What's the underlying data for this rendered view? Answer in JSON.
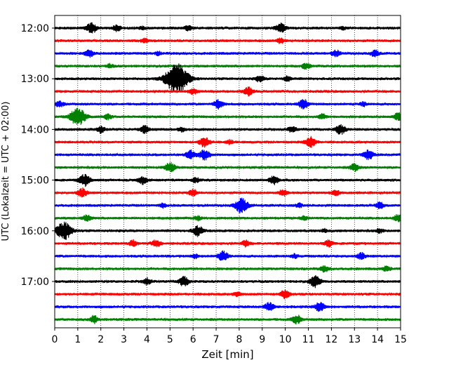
{
  "chart_data": {
    "type": "line",
    "title": "",
    "xlabel": "Zeit  [min]",
    "ylabel": "UTC (Lokalzeit = UTC + 02:00)",
    "xlim": [
      0,
      15
    ],
    "xticks": [
      0,
      1,
      2,
      3,
      4,
      5,
      6,
      7,
      8,
      9,
      10,
      11,
      12,
      13,
      14,
      15
    ],
    "xtick_labels": [
      "0",
      "1",
      "2",
      "3",
      "4",
      "5",
      "6",
      "7",
      "8",
      "9",
      "10",
      "11",
      "12",
      "13",
      "14",
      "15"
    ],
    "ytick_labels": [
      "12:00",
      "13:00",
      "14:00",
      "15:00",
      "16:00",
      "17:00"
    ],
    "row_interval_minutes": 15,
    "first_row": "12:00",
    "row_colors": [
      "#000000",
      "#ff0000",
      "#0000ff",
      "#008000"
    ],
    "grid": "vertical dotted lines at each minute",
    "series": [
      {
        "start": "12:00",
        "color": "#000000",
        "events": [
          [
            1.6,
            1.0
          ],
          [
            2.7,
            0.6
          ],
          [
            3.8,
            0.3
          ],
          [
            5.8,
            0.5
          ],
          [
            9.8,
            0.9
          ],
          [
            12.5,
            0.3
          ]
        ]
      },
      {
        "start": "12:15",
        "color": "#ff0000",
        "events": [
          [
            3.9,
            0.4
          ],
          [
            9.8,
            0.5
          ]
        ]
      },
      {
        "start": "12:30",
        "color": "#0000ff",
        "events": [
          [
            1.5,
            0.7
          ],
          [
            4.5,
            0.3
          ],
          [
            12.2,
            0.6
          ],
          [
            13.9,
            0.6
          ]
        ]
      },
      {
        "start": "12:45",
        "color": "#008000",
        "events": [
          [
            2.4,
            0.4
          ],
          [
            10.9,
            0.6
          ]
        ]
      },
      {
        "start": "13:00",
        "color": "#000000",
        "events": [
          [
            5.3,
            3.0
          ],
          [
            8.9,
            0.6
          ],
          [
            10.1,
            0.5
          ]
        ]
      },
      {
        "start": "13:15",
        "color": "#ff0000",
        "events": [
          [
            6.0,
            0.6
          ],
          [
            8.4,
            0.8
          ]
        ]
      },
      {
        "start": "13:30",
        "color": "#0000ff",
        "events": [
          [
            0.2,
            0.6
          ],
          [
            7.1,
            0.8
          ],
          [
            10.8,
            0.9
          ],
          [
            13.4,
            0.4
          ]
        ]
      },
      {
        "start": "13:45",
        "color": "#008000",
        "events": [
          [
            1.0,
            1.8
          ],
          [
            2.3,
            0.5
          ],
          [
            11.6,
            0.5
          ],
          [
            14.9,
            0.7
          ]
        ]
      },
      {
        "start": "14:00",
        "color": "#000000",
        "events": [
          [
            2.0,
            0.6
          ],
          [
            3.9,
            0.7
          ],
          [
            5.5,
            0.4
          ],
          [
            10.3,
            0.6
          ],
          [
            12.4,
            0.9
          ]
        ]
      },
      {
        "start": "14:15",
        "color": "#ff0000",
        "events": [
          [
            6.5,
            1.0
          ],
          [
            7.6,
            0.4
          ],
          [
            11.1,
            1.0
          ]
        ]
      },
      {
        "start": "14:30",
        "color": "#0000ff",
        "events": [
          [
            5.9,
            0.8
          ],
          [
            6.5,
            1.0
          ],
          [
            13.6,
            0.9
          ]
        ]
      },
      {
        "start": "14:45",
        "color": "#008000",
        "events": [
          [
            5.0,
            0.9
          ],
          [
            13.0,
            0.7
          ]
        ]
      },
      {
        "start": "15:00",
        "color": "#000000",
        "events": [
          [
            1.3,
            1.1
          ],
          [
            3.8,
            0.8
          ],
          [
            6.1,
            0.5
          ],
          [
            9.5,
            0.8
          ]
        ]
      },
      {
        "start": "15:15",
        "color": "#ff0000",
        "events": [
          [
            1.2,
            0.8
          ],
          [
            6.0,
            0.6
          ],
          [
            9.9,
            0.6
          ],
          [
            12.2,
            0.5
          ]
        ]
      },
      {
        "start": "15:30",
        "color": "#0000ff",
        "events": [
          [
            4.7,
            0.4
          ],
          [
            8.1,
            1.4
          ],
          [
            10.6,
            0.4
          ],
          [
            14.1,
            0.6
          ]
        ]
      },
      {
        "start": "15:45",
        "color": "#008000",
        "events": [
          [
            1.4,
            0.6
          ],
          [
            6.2,
            0.4
          ],
          [
            10.8,
            0.4
          ],
          [
            14.9,
            0.7
          ]
        ]
      },
      {
        "start": "16:00",
        "color": "#000000",
        "events": [
          [
            0.4,
            1.8
          ],
          [
            6.2,
            1.0
          ],
          [
            11.7,
            0.3
          ],
          [
            14.1,
            0.4
          ]
        ]
      },
      {
        "start": "16:15",
        "color": "#ff0000",
        "events": [
          [
            3.4,
            0.6
          ],
          [
            4.4,
            0.7
          ],
          [
            8.3,
            0.6
          ],
          [
            11.9,
            0.7
          ]
        ]
      },
      {
        "start": "16:30",
        "color": "#0000ff",
        "events": [
          [
            6.1,
            0.4
          ],
          [
            7.3,
            0.9
          ],
          [
            10.4,
            0.4
          ],
          [
            13.3,
            0.6
          ]
        ]
      },
      {
        "start": "16:45",
        "color": "#008000",
        "events": [
          [
            11.7,
            0.6
          ],
          [
            14.4,
            0.5
          ]
        ]
      },
      {
        "start": "17:00",
        "color": "#000000",
        "events": [
          [
            4.0,
            0.6
          ],
          [
            5.6,
            0.9
          ],
          [
            11.3,
            1.1
          ]
        ]
      },
      {
        "start": "17:15",
        "color": "#ff0000",
        "events": [
          [
            7.9,
            0.4
          ],
          [
            10.0,
            0.8
          ]
        ]
      },
      {
        "start": "17:30",
        "color": "#0000ff",
        "events": [
          [
            9.3,
            0.8
          ],
          [
            11.5,
            0.9
          ]
        ]
      },
      {
        "start": "17:45",
        "color": "#008000",
        "events": [
          [
            1.7,
            0.7
          ],
          [
            10.5,
            0.8
          ]
        ]
      }
    ]
  }
}
